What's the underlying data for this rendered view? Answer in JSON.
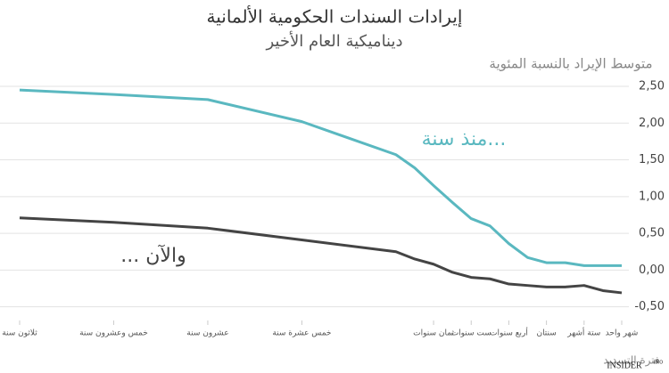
{
  "chart_data": {
    "type": "line",
    "title": "إيرادات السندات الحكومية الألمانية",
    "subtitle": "ديناميكية العام الأخير",
    "y_label": "متوسط الإيراد بالنسبة المئوية",
    "x_label": "فترة التسديد",
    "categories": [
      "ثلاثون سنة",
      "خمس وعشرون سنة",
      "عشرون سنة",
      "خمس عشرة سنة",
      null,
      null,
      "ثمان سنوات",
      null,
      "ست سنوات",
      null,
      "أربع سنوات",
      null,
      "سنتان",
      null,
      "ستة أشهر",
      null,
      "شهر واحد"
    ],
    "series": [
      {
        "name": "منذ سنة...",
        "color": "#5ab8c0",
        "values": [
          2.45,
          2.39,
          2.32,
          2.02,
          1.57,
          1.39,
          1.15,
          0.92,
          0.7,
          0.6,
          0.36,
          0.17,
          0.1,
          0.1,
          0.06,
          0.06,
          0.06
        ]
      },
      {
        "name": "... والآن",
        "color": "#444444",
        "values": [
          0.71,
          0.65,
          0.57,
          0.41,
          0.25,
          0.15,
          0.08,
          -0.03,
          -0.1,
          -0.12,
          -0.19,
          -0.21,
          -0.23,
          -0.23,
          -0.21,
          -0.28,
          -0.31
        ]
      }
    ],
    "ylim": [
      -0.65,
      2.7
    ],
    "yticks": [
      {
        "value": 2.5,
        "label": "2,50"
      },
      {
        "value": 2,
        "label": "2,00"
      },
      {
        "value": 1.5,
        "label": "1,50"
      },
      {
        "value": 1,
        "label": "1,00"
      },
      {
        "value": 0.5,
        "label": "0,50"
      },
      {
        "value": 0,
        "label": "0,00"
      },
      {
        "value": -0.5,
        "label": "-0,50"
      }
    ],
    "grid": true,
    "logo": "INSIDER",
    "logo_sup": "PRO"
  }
}
